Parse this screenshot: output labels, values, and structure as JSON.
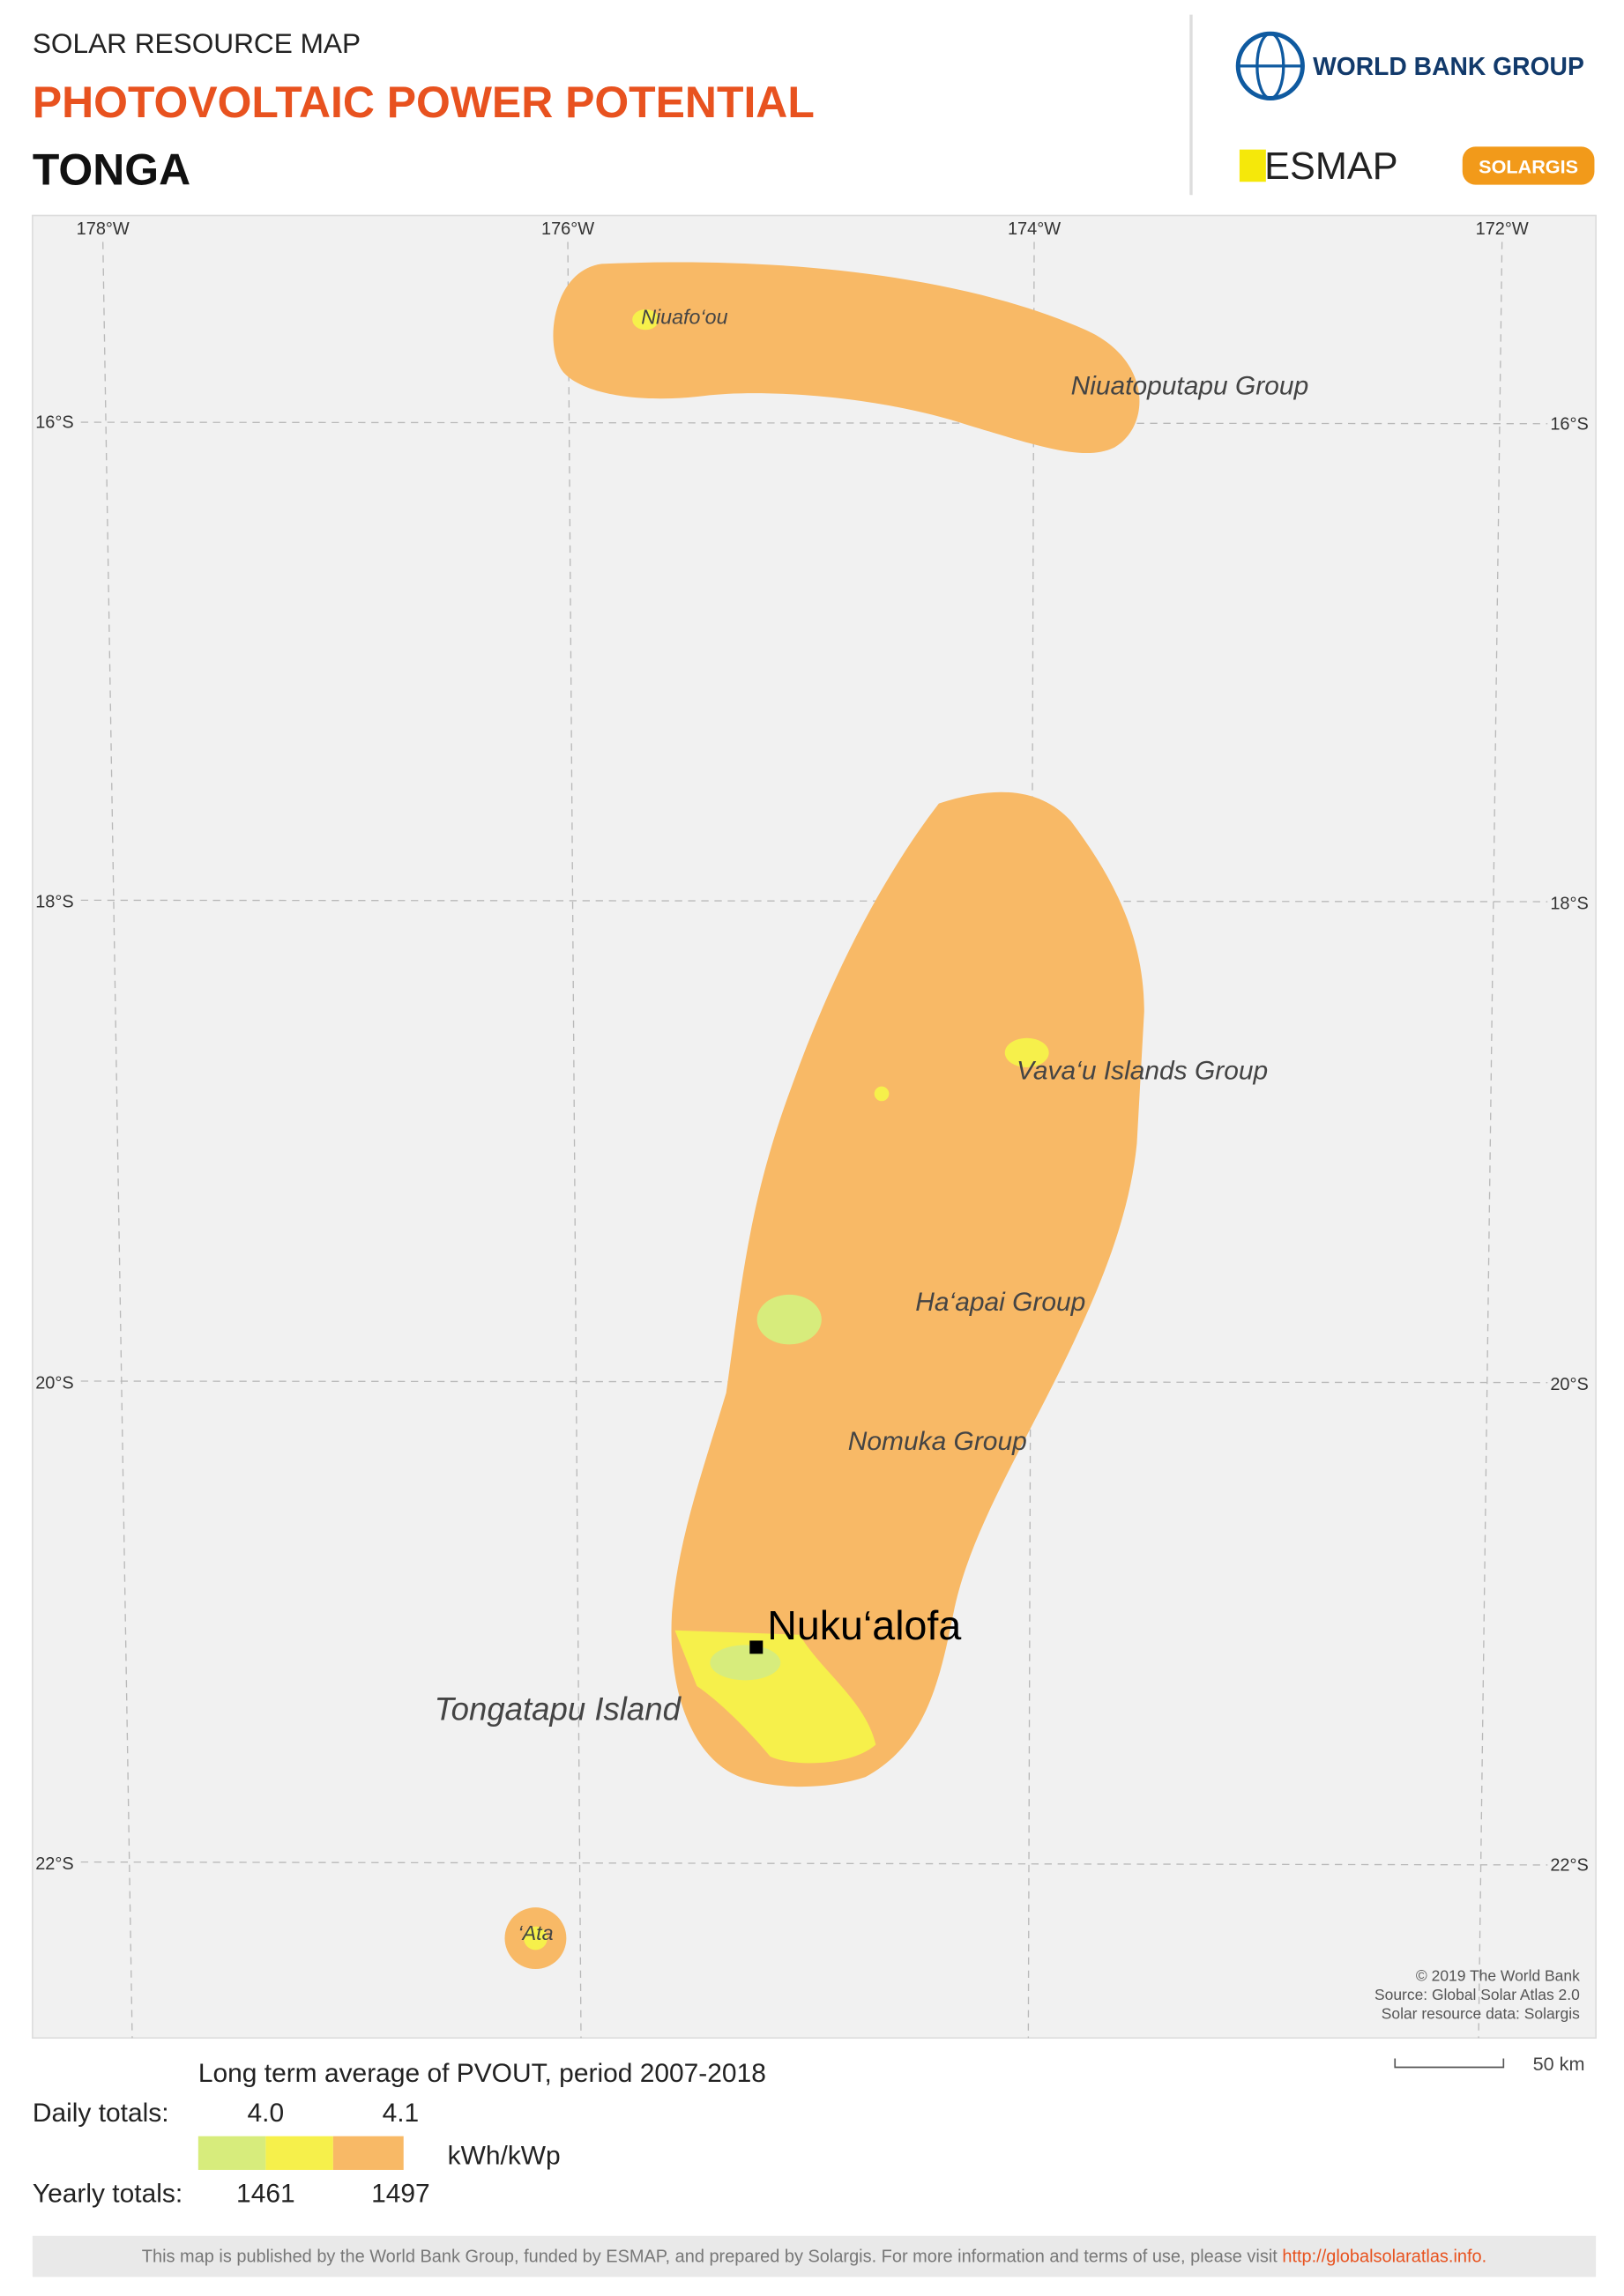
{
  "header": {
    "subtitle": "SOLAR RESOURCE MAP",
    "title": "PHOTOVOLTAIC POWER POTENTIAL",
    "country": "TONGA"
  },
  "logos": {
    "world_bank": "WORLD BANK GROUP",
    "esmap": "ESMAP",
    "solargis": "SOLARGIS"
  },
  "map": {
    "longitudes": [
      "178°W",
      "176°W",
      "174°W",
      "172°W"
    ],
    "latitudes": [
      "16°S",
      "18°S",
      "20°S",
      "22°S"
    ],
    "places": [
      "Niuafo‘ou",
      "Niuatoputapu Group",
      "Vava‘u Islands Group",
      "Ha‘apai Group",
      "Nomuka Group",
      "Tongatapu Island",
      "‘Ata"
    ],
    "capital": "Nuku‘alofa",
    "credits": [
      "© 2019 The World Bank",
      "Source: Global Solar Atlas 2.0",
      "Solar resource data: Solargis"
    ],
    "scale": "50 km"
  },
  "legend": {
    "title": "Long term average of PVOUT, period 2007-2018",
    "daily_label": "Daily totals:",
    "daily_values": [
      "4.0",
      "4.1"
    ],
    "unit": "kWh/kWp",
    "yearly_label": "Yearly totals:",
    "yearly_values": [
      "1461",
      "1497"
    ],
    "colors": [
      "#d7ec7c",
      "#f6f04b",
      "#f8b966"
    ]
  },
  "footer": {
    "text": "This map is published by the World Bank Group, funded by ESMAP, and prepared by Solargis. For more information and terms of use, please visit",
    "link": "http://globalsolaratlas.info."
  }
}
